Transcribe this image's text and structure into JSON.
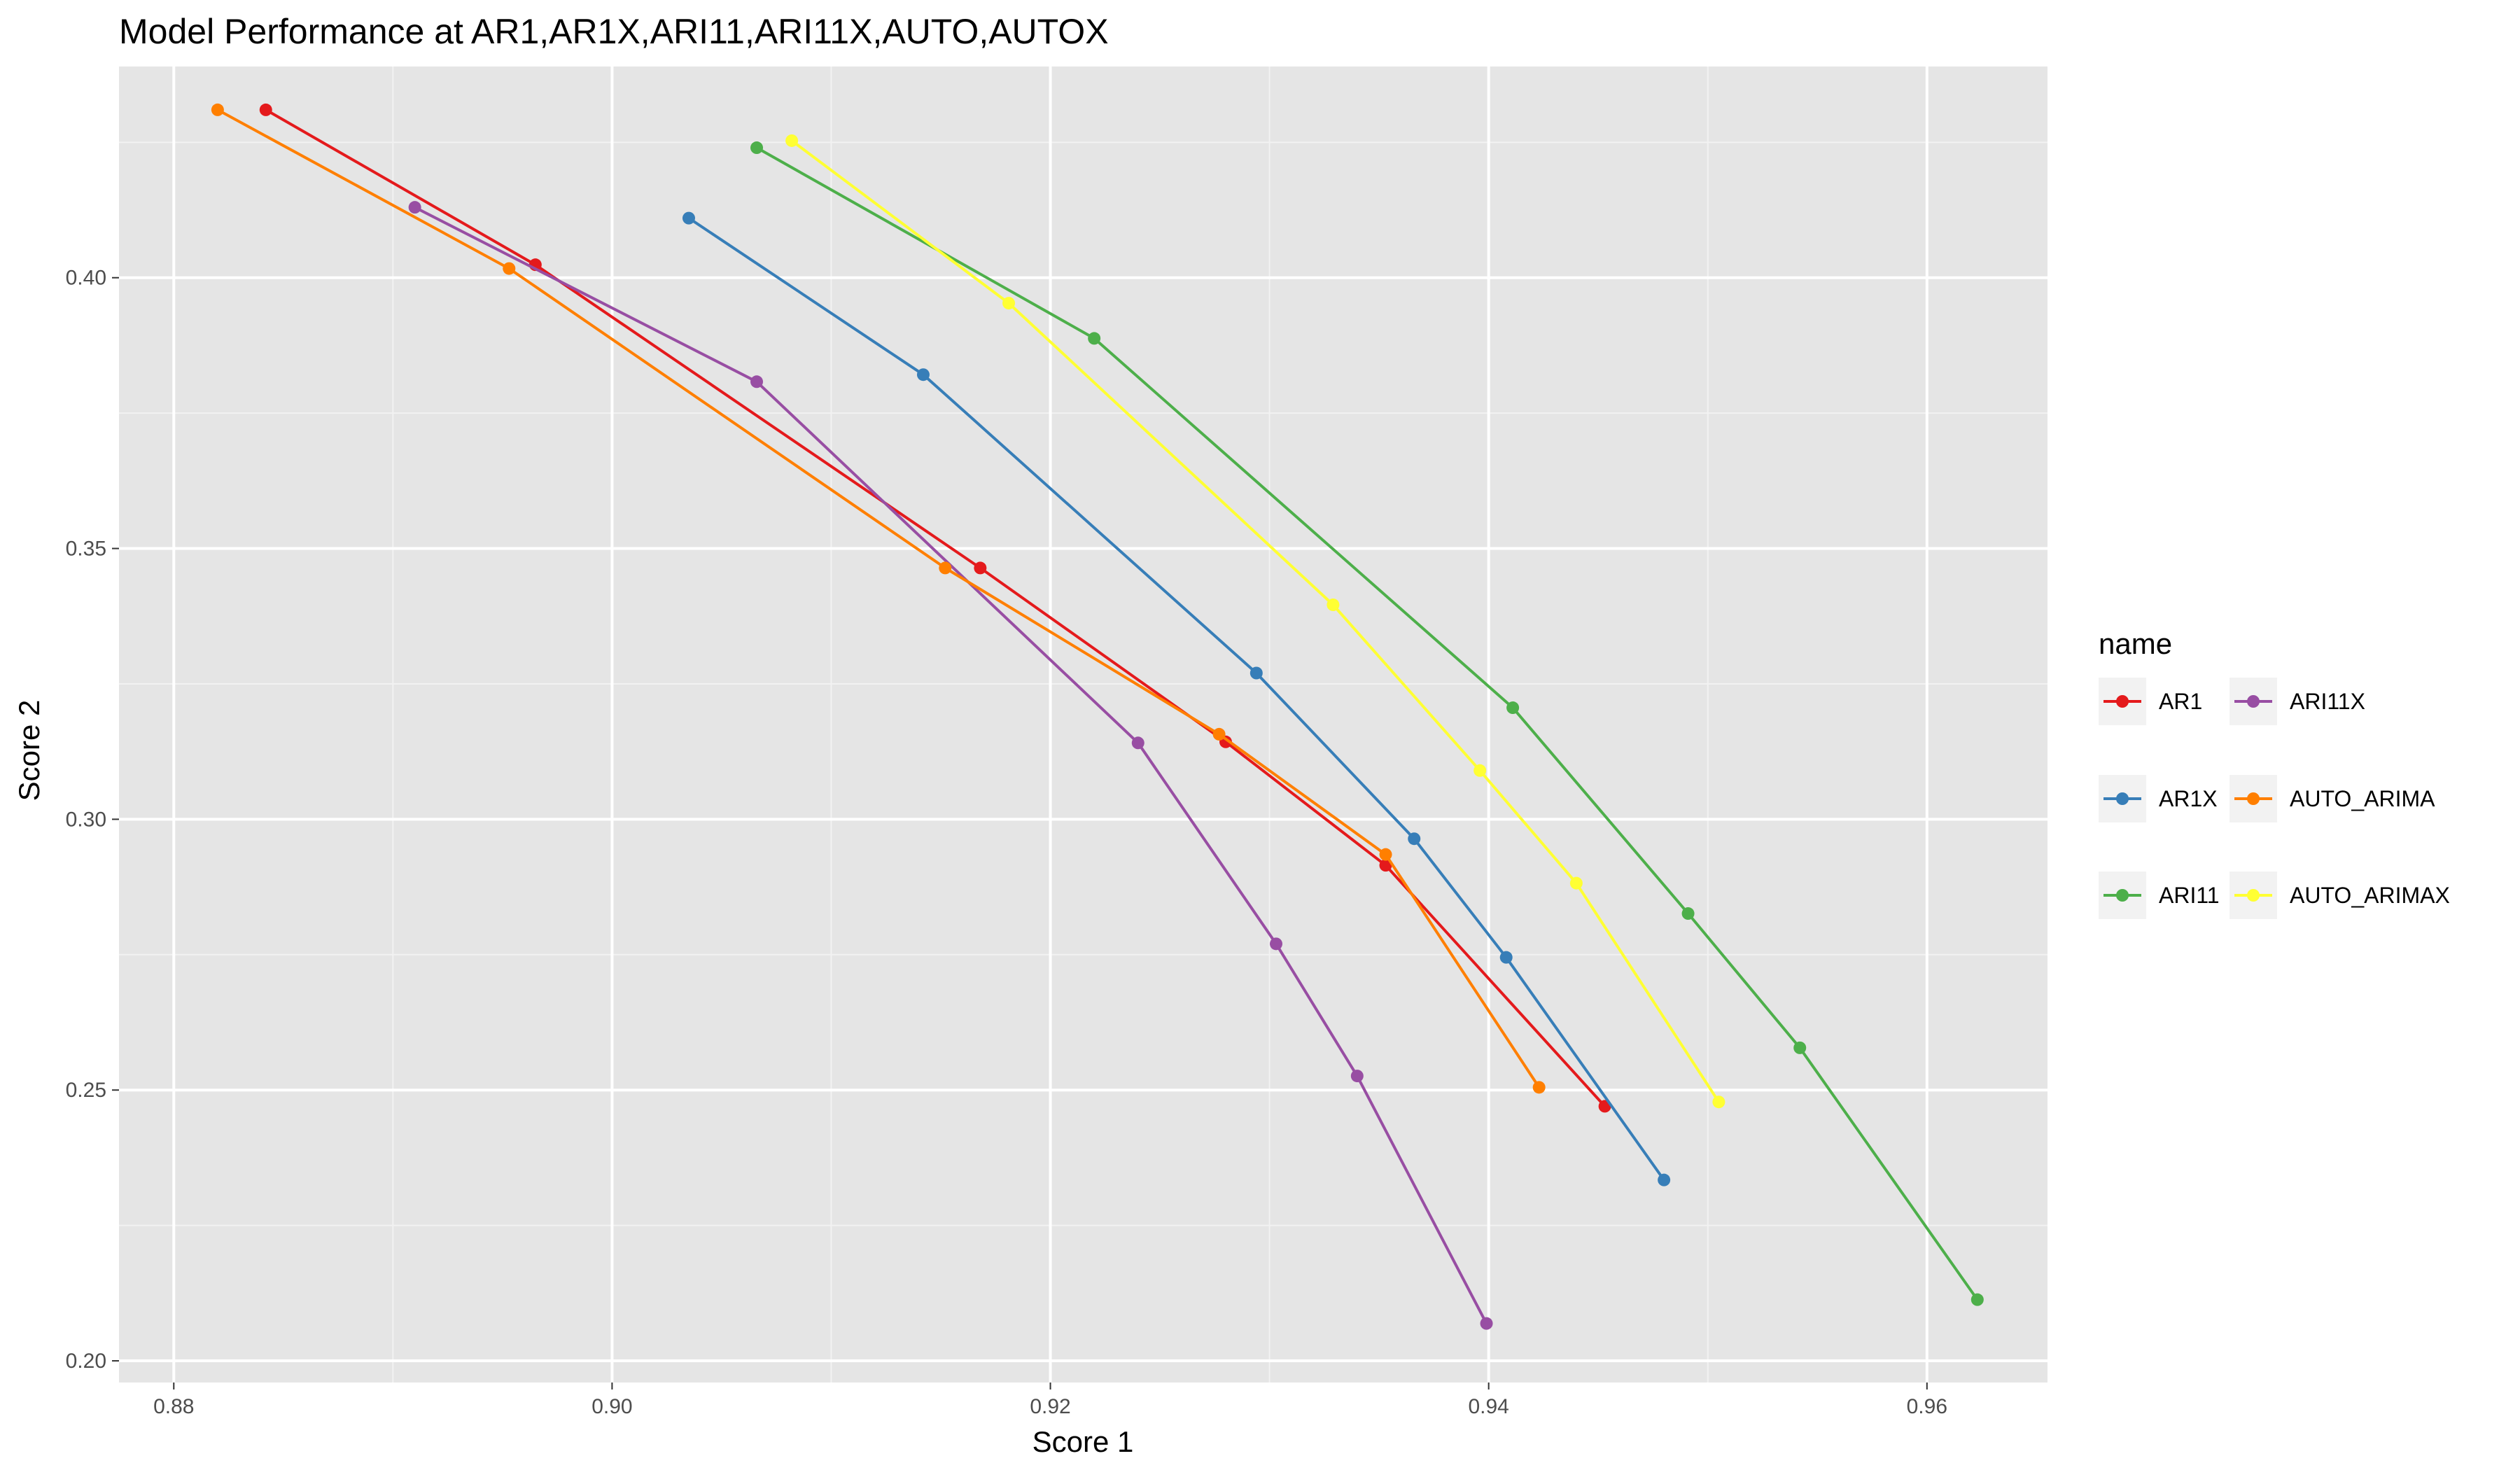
{
  "chart_data": {
    "type": "line",
    "title": "Model Performance at AR1,AR1X,ARI11,ARI11X,AUTO,AUTOX",
    "xlabel": "Score 1",
    "ylabel": "Score 2",
    "xlim": [
      0.8775,
      0.9655
    ],
    "ylim": [
      0.196,
      0.439
    ],
    "x_ticks": [
      0.88,
      0.9,
      0.92,
      0.94,
      0.96
    ],
    "x_tick_labels": [
      "0.88",
      "0.90",
      "0.92",
      "0.94",
      "0.96"
    ],
    "y_ticks": [
      0.2,
      0.25,
      0.3,
      0.35,
      0.4
    ],
    "y_tick_labels": [
      "0.20",
      "0.25",
      "0.30",
      "0.35",
      "0.40"
    ],
    "grid": true,
    "panel_background": "#e5e5e5",
    "legend": {
      "title": "name",
      "placement": "right",
      "columns": 2
    },
    "series": [
      {
        "name": "AR1",
        "color": "#e41a1c",
        "points": [
          [
            0.8842,
            0.431
          ],
          [
            0.8965,
            0.4024
          ],
          [
            0.9168,
            0.3464
          ],
          [
            0.928,
            0.3143
          ],
          [
            0.9353,
            0.2915
          ],
          [
            0.9453,
            0.247
          ]
        ]
      },
      {
        "name": "AR1X",
        "color": "#377eb8",
        "points": [
          [
            0.9035,
            0.411
          ],
          [
            0.9142,
            0.3821
          ],
          [
            0.9294,
            0.327
          ],
          [
            0.9366,
            0.2964
          ],
          [
            0.9408,
            0.2745
          ],
          [
            0.948,
            0.2334
          ]
        ]
      },
      {
        "name": "ARI11",
        "color": "#4daf4a",
        "points": [
          [
            0.9066,
            0.424
          ],
          [
            0.922,
            0.3888
          ],
          [
            0.9411,
            0.3206
          ],
          [
            0.9491,
            0.2826
          ],
          [
            0.9542,
            0.2578
          ],
          [
            0.9623,
            0.2113
          ]
        ]
      },
      {
        "name": "ARI11X",
        "color": "#984ea3",
        "points": [
          [
            0.891,
            0.413
          ],
          [
            0.9066,
            0.3808
          ],
          [
            0.924,
            0.3141
          ],
          [
            0.9303,
            0.277
          ],
          [
            0.934,
            0.2526
          ],
          [
            0.9399,
            0.2069
          ]
        ]
      },
      {
        "name": "AUTO_ARIMA",
        "color": "#ff7f00",
        "points": [
          [
            0.882,
            0.431
          ],
          [
            0.8953,
            0.4017
          ],
          [
            0.9152,
            0.3464
          ],
          [
            0.9277,
            0.3157
          ],
          [
            0.9353,
            0.2935
          ],
          [
            0.9423,
            0.2505
          ]
        ]
      },
      {
        "name": "AUTO_ARIMAX",
        "color": "#ffff33",
        "points": [
          [
            0.9082,
            0.4253
          ],
          [
            0.9181,
            0.3953
          ],
          [
            0.9329,
            0.3396
          ],
          [
            0.9396,
            0.309
          ],
          [
            0.944,
            0.2882
          ],
          [
            0.9505,
            0.2478
          ]
        ]
      }
    ]
  }
}
